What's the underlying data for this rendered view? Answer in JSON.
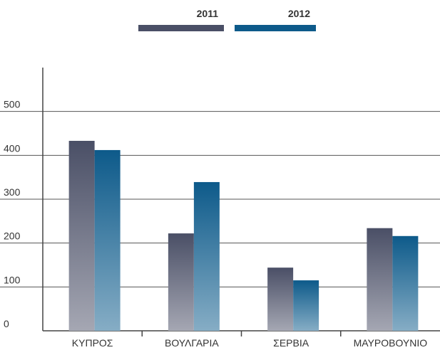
{
  "chart_data": {
    "type": "bar",
    "categories": [
      "ΚΥΠΡΟΣ",
      "ΒΟΥΛΓΑΡΙΑ",
      "ΣΕΡΒΙΑ",
      "ΜΑΥΡΟΒΟΥΝΙΟ"
    ],
    "series": [
      {
        "name": "2011",
        "color": "#4a4f66",
        "values": [
          433,
          222,
          144,
          234
        ]
      },
      {
        "name": "2012",
        "color": "#0d5a8a",
        "values": [
          412,
          339,
          115,
          216
        ]
      }
    ],
    "ylim": [
      0,
      600
    ],
    "yticks": [
      0,
      100,
      200,
      300,
      400,
      500
    ],
    "grid": true
  }
}
